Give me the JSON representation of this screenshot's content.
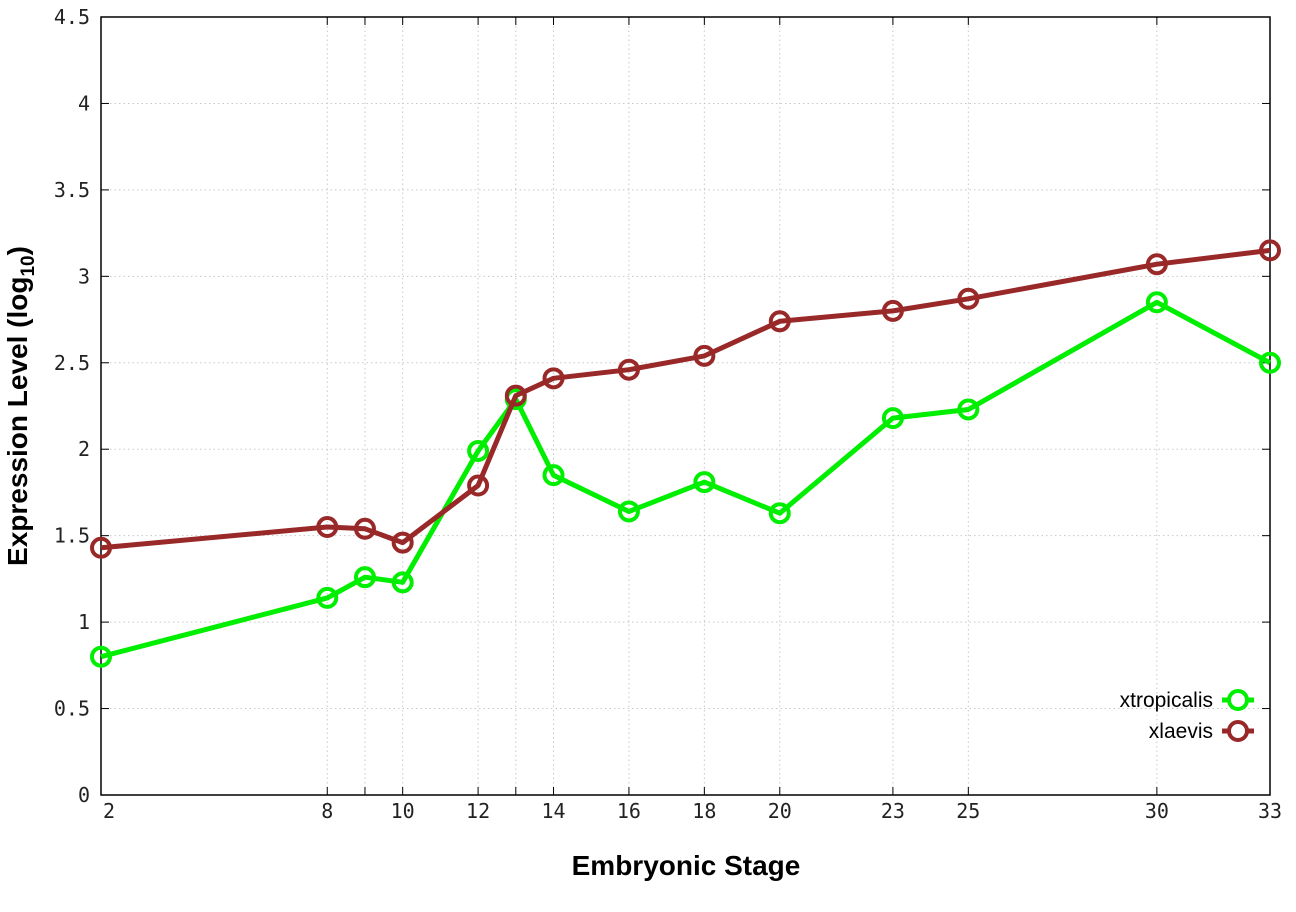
{
  "chart_data": {
    "type": "line",
    "title": "",
    "xlabel": "Embryonic Stage",
    "ylabel_main": "Expression Level (log",
    "ylabel_sub": "10",
    "ylabel_close": ")",
    "x_ticks": [
      {
        "value": 2,
        "label": "2"
      },
      {
        "value": 8,
        "label": "8"
      },
      {
        "value": 9,
        "label": ""
      },
      {
        "value": 10,
        "label": "10"
      },
      {
        "value": 12,
        "label": "12"
      },
      {
        "value": 13,
        "label": ""
      },
      {
        "value": 14,
        "label": "14"
      },
      {
        "value": 16,
        "label": "16"
      },
      {
        "value": 18,
        "label": "18"
      },
      {
        "value": 20,
        "label": "20"
      },
      {
        "value": 23,
        "label": "23"
      },
      {
        "value": 25,
        "label": "25"
      },
      {
        "value": 30,
        "label": "30"
      },
      {
        "value": 33,
        "label": "33"
      }
    ],
    "y_ticks": [
      {
        "value": 0,
        "label": "0"
      },
      {
        "value": 0.5,
        "label": "0.5"
      },
      {
        "value": 1,
        "label": "1"
      },
      {
        "value": 1.5,
        "label": "1.5"
      },
      {
        "value": 2,
        "label": "2"
      },
      {
        "value": 2.5,
        "label": "2.5"
      },
      {
        "value": 3,
        "label": "3"
      },
      {
        "value": 3.5,
        "label": "3.5"
      },
      {
        "value": 4,
        "label": "4"
      },
      {
        "value": 4.5,
        "label": "4.5"
      }
    ],
    "xlim": [
      2,
      33
    ],
    "ylim": [
      0,
      4.5
    ],
    "grid": true,
    "legend_position": "bottom-right",
    "series": [
      {
        "name": "xtropicalis",
        "color": "#00ee00",
        "x": [
          2,
          8,
          9,
          10,
          12,
          13,
          14,
          16,
          18,
          20,
          23,
          25,
          30,
          33
        ],
        "y": [
          0.8,
          1.14,
          1.26,
          1.23,
          1.99,
          2.29,
          1.85,
          1.64,
          1.81,
          1.63,
          2.18,
          2.23,
          2.85,
          2.5
        ]
      },
      {
        "name": "xlaevis",
        "color": "#992828",
        "x": [
          2,
          8,
          9,
          10,
          12,
          13,
          14,
          16,
          18,
          20,
          23,
          25,
          30,
          33
        ],
        "y": [
          1.43,
          1.55,
          1.54,
          1.46,
          1.79,
          2.31,
          2.41,
          2.46,
          2.54,
          2.74,
          2.8,
          2.87,
          3.07,
          3.15
        ]
      }
    ]
  }
}
